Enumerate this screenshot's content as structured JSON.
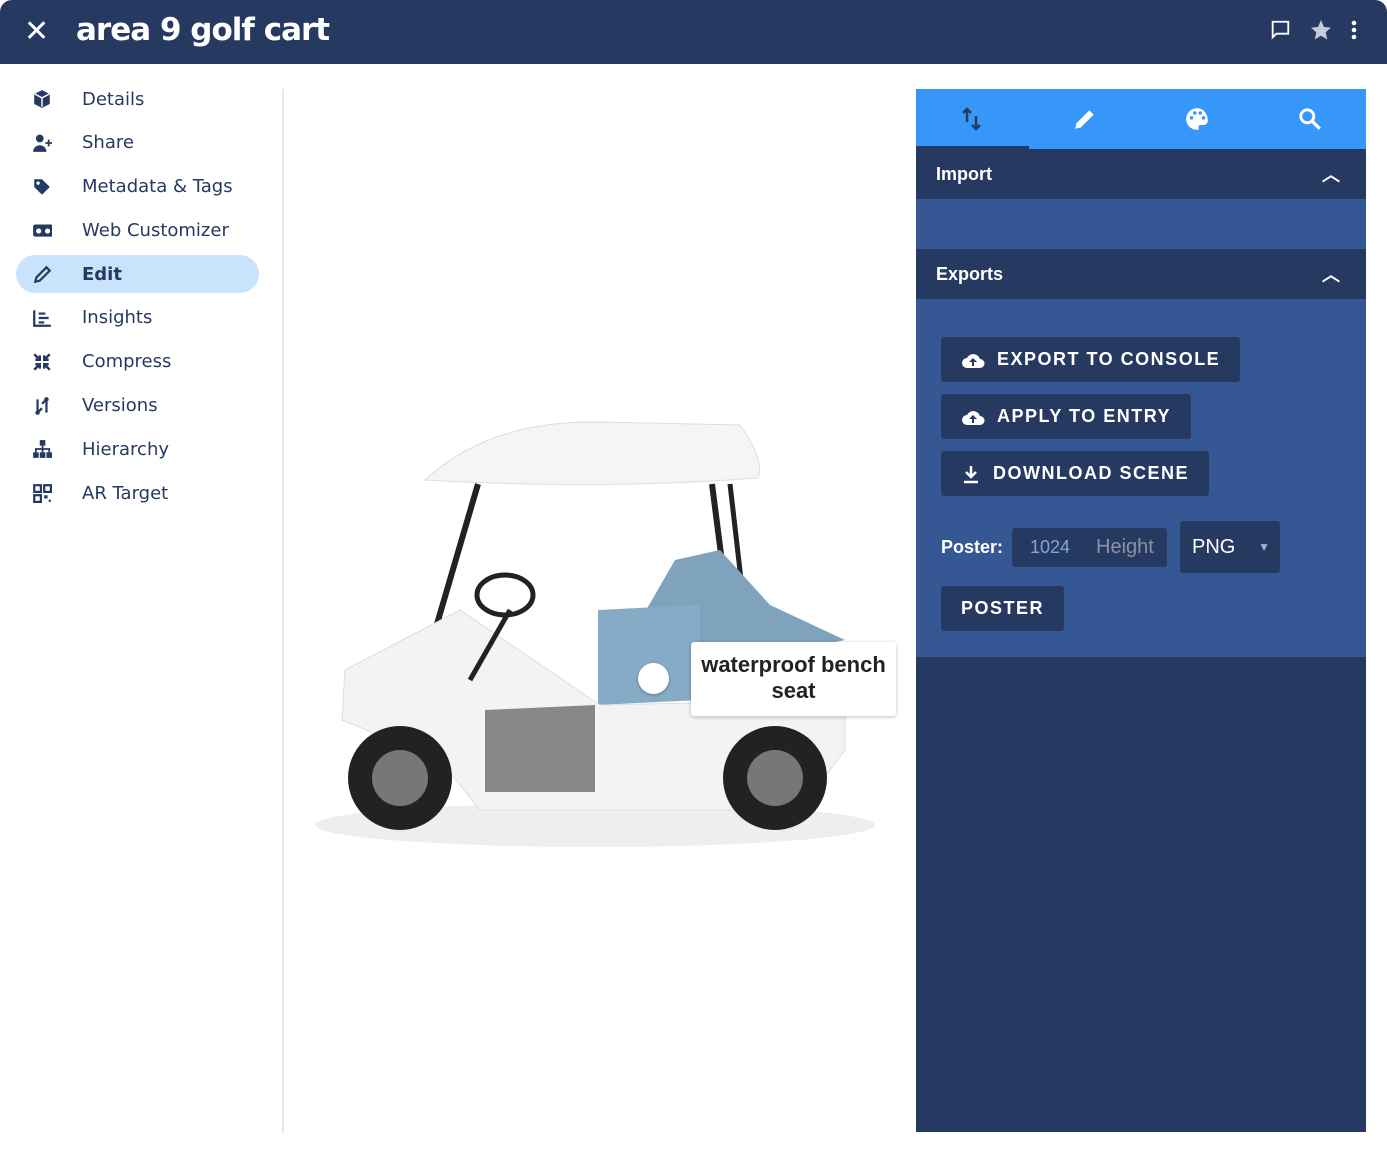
{
  "header": {
    "title": "area 9 golf cart",
    "close_icon": "close-icon",
    "icons": [
      "comment-icon",
      "star-icon",
      "more-vert-icon"
    ]
  },
  "sidebar": {
    "items": [
      {
        "label": "Details",
        "icon": "cube-icon"
      },
      {
        "label": "Share",
        "icon": "user-plus-icon"
      },
      {
        "label": "Metadata & Tags",
        "icon": "tag-icon"
      },
      {
        "label": "Web Customizer",
        "icon": "vr-cardboard-icon"
      },
      {
        "label": "Edit",
        "icon": "pencil-icon",
        "active": true
      },
      {
        "label": "Insights",
        "icon": "chart-bar-icon"
      },
      {
        "label": "Compress",
        "icon": "compress-icon"
      },
      {
        "label": "Versions",
        "icon": "versions-icon"
      },
      {
        "label": "Hierarchy",
        "icon": "sitemap-icon"
      },
      {
        "label": "AR Target",
        "icon": "qrcode-icon"
      }
    ]
  },
  "viewer": {
    "hotspot_label": "waterproof bench seat"
  },
  "panel": {
    "tabs": [
      {
        "icon": "import-export-icon",
        "active": true
      },
      {
        "icon": "pencil-icon"
      },
      {
        "icon": "palette-icon"
      },
      {
        "icon": "search-icon"
      }
    ],
    "import": {
      "title": "Import"
    },
    "exports": {
      "title": "Exports",
      "buttons": [
        "EXPORT TO CONSOLE",
        "APPLY TO ENTRY",
        "DOWNLOAD SCENE"
      ],
      "poster_label": "Poster:",
      "poster_width": "1024",
      "poster_height_placeholder": "Height",
      "format": "PNG",
      "poster_button": "POSTER"
    }
  },
  "colors": {
    "header": "#263961",
    "tab_bar": "#3797f9",
    "section_body": "#355894",
    "active_item": "#c8e3fb"
  }
}
